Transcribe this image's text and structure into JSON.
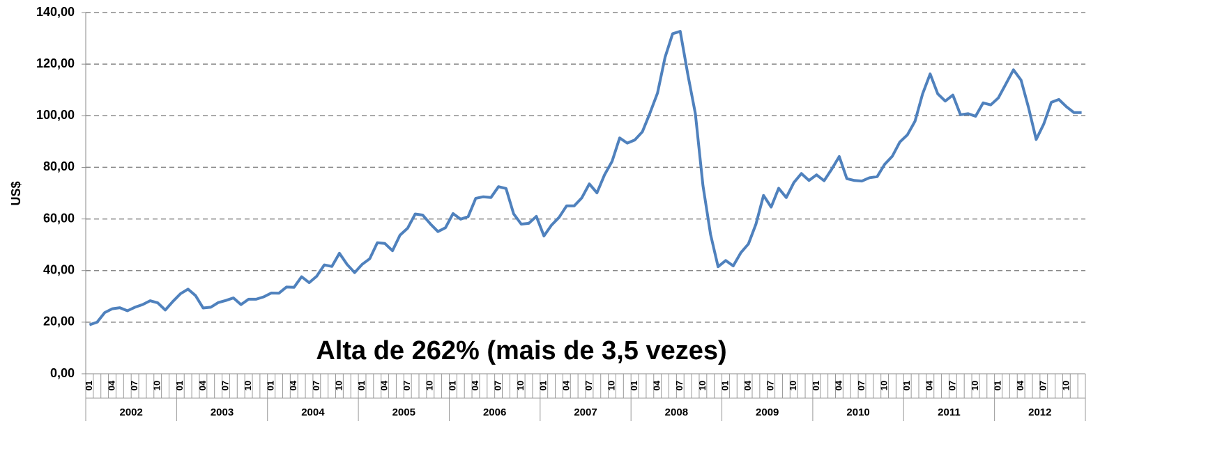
{
  "chart_data": {
    "type": "line",
    "y_label": "US$",
    "annotation": "Alta de 262% (mais de 3,5 vezes)",
    "color": "#4f81bd",
    "grid": true,
    "ylim": [
      0,
      140
    ],
    "yticks": [
      {
        "value": 0,
        "label": "0,00"
      },
      {
        "value": 20,
        "label": "20,00"
      },
      {
        "value": 40,
        "label": "40,00"
      },
      {
        "value": 60,
        "label": "60,00"
      },
      {
        "value": 80,
        "label": "80,00"
      },
      {
        "value": 100,
        "label": "100,00"
      },
      {
        "value": 120,
        "label": "120,00"
      },
      {
        "value": 140,
        "label": "140,00"
      }
    ],
    "years": [
      "2002",
      "2003",
      "2004",
      "2005",
      "2006",
      "2007",
      "2008",
      "2009",
      "2010",
      "2011",
      "2012"
    ],
    "categories": [
      "01",
      null,
      null,
      "04",
      null,
      null,
      "07",
      null,
      null,
      "10",
      null,
      null,
      "01",
      null,
      null,
      "04",
      null,
      null,
      "07",
      null,
      null,
      "10",
      null,
      null,
      "01",
      null,
      null,
      "04",
      null,
      null,
      "07",
      null,
      null,
      "10",
      null,
      null,
      "01",
      null,
      null,
      "04",
      null,
      null,
      "07",
      null,
      null,
      "10",
      null,
      null,
      "01",
      null,
      null,
      "04",
      null,
      null,
      "07",
      null,
      null,
      "10",
      null,
      null,
      "01",
      null,
      null,
      "04",
      null,
      null,
      "07",
      null,
      null,
      "10",
      null,
      null,
      "01",
      null,
      null,
      "04",
      null,
      null,
      "07",
      null,
      null,
      "10",
      null,
      null,
      "01",
      null,
      null,
      "04",
      null,
      null,
      "07",
      null,
      null,
      "10",
      null,
      null,
      "01",
      null,
      null,
      "04",
      null,
      null,
      "07",
      null,
      null,
      "10",
      null,
      null,
      "01",
      null,
      null,
      "04",
      null,
      null,
      "07",
      null,
      null,
      "10",
      null,
      null,
      "01",
      null,
      null,
      "04",
      null,
      null,
      "07",
      null,
      null,
      "10",
      null,
      null
    ],
    "values": [
      19.0,
      20.0,
      23.7,
      25.2,
      25.6,
      24.4,
      25.8,
      26.8,
      28.3,
      27.5,
      24.7,
      28.0,
      31.0,
      32.8,
      30.3,
      25.5,
      25.8,
      27.6,
      28.4,
      29.4,
      26.8,
      28.9,
      28.9,
      29.8,
      31.3,
      31.2,
      33.6,
      33.5,
      37.6,
      35.3,
      37.8,
      42.2,
      41.6,
      46.7,
      42.4,
      39.2,
      42.4,
      44.6,
      50.8,
      50.5,
      47.7,
      53.7,
      56.4,
      61.9,
      61.5,
      58.1,
      55.1,
      56.6,
      62.1,
      59.9,
      60.9,
      68.0,
      68.6,
      68.3,
      72.5,
      71.8,
      62.0,
      58.0,
      58.3,
      61.0,
      53.4,
      57.6,
      60.6,
      65.1,
      65.1,
      68.2,
      73.6,
      70.1,
      77.1,
      82.3,
      91.4,
      89.4,
      90.6,
      93.8,
      101.0,
      108.8,
      122.7,
      131.8,
      132.7,
      116.0,
      100.8,
      72.9,
      54.0,
      41.5,
      43.9,
      41.8,
      46.9,
      50.3,
      58.0,
      69.1,
      64.6,
      71.9,
      68.3,
      74.1,
      77.6,
      74.9,
      77.1,
      74.8,
      79.3,
      84.2,
      75.6,
      74.9,
      74.7,
      76.0,
      76.4,
      81.2,
      84.3,
      89.8,
      92.6,
      97.9,
      108.4,
      116.2,
      108.5,
      105.7,
      108.0,
      100.4,
      100.8,
      99.8,
      105.0,
      104.2,
      106.9,
      112.3,
      117.8,
      113.8,
      103.1,
      90.8,
      96.8,
      105.2,
      106.3,
      103.5,
      101.2,
      101.2
    ]
  }
}
